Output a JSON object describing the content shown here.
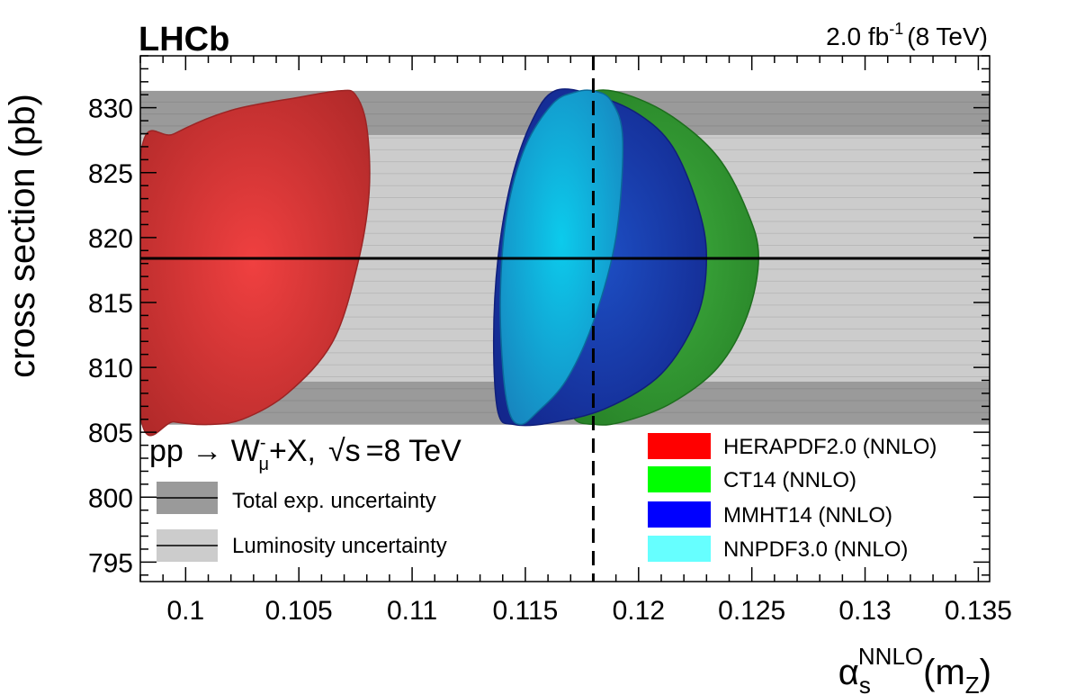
{
  "chart_data": {
    "type": "scatter",
    "experiment": "LHCb",
    "luminosity_label": "2.0 fb",
    "luminosity_sup": "-1",
    "energy_label": "(8 TeV)",
    "ylabel": "cross section (pb)",
    "xlabel": {
      "alpha": "α",
      "sub": "s",
      "sup": "NNLO",
      "m_open": "(m",
      "m_sub": "Z",
      "close": ")"
    },
    "xlim": [
      0.098,
      0.1355
    ],
    "ylim": [
      793.5,
      834
    ],
    "xticks": [
      0.1,
      0.105,
      0.11,
      0.115,
      0.12,
      0.125,
      0.13,
      0.135
    ],
    "xtick_labels": [
      "0.1",
      "0.105",
      "0.11",
      "0.115",
      "0.12",
      "0.125",
      "0.13",
      "0.135"
    ],
    "yticks": [
      795,
      800,
      805,
      810,
      815,
      820,
      825,
      830
    ],
    "ytick_labels": [
      "795",
      "800",
      "805",
      "810",
      "815",
      "820",
      "825",
      "830"
    ],
    "measurement": 818.4,
    "reference_alpha_s": 0.118,
    "bands": [
      {
        "name": "Total exp. uncertainty",
        "y_range": [
          805.6,
          831.3
        ],
        "color": "#9a9a9a"
      },
      {
        "name": "Luminosity uncertainty",
        "y_range": [
          808.9,
          827.9
        ],
        "color": "#cccccc"
      }
    ],
    "process": {
      "pre": "pp → W",
      "w_sup": "-",
      "w_sub": "μ",
      "post": "+X,",
      "sqrt": "√s",
      "energy": "=8 TeV"
    },
    "legend_bands": [
      {
        "label": "Total exp. uncertainty",
        "color": "#9a9a9a"
      },
      {
        "label": "Luminosity uncertainty",
        "color": "#cccccc"
      }
    ],
    "series": [
      {
        "name": "HERAPDF2.0 (NNLO)",
        "color": "#ff0000",
        "fill": "#e83838",
        "dark": "#9c2424",
        "outline": [
          [
            0.098,
            826.2
          ],
          [
            0.0995,
            828.0
          ],
          [
            0.102,
            829.8
          ],
          [
            0.105,
            830.8
          ],
          [
            0.1068,
            831.3
          ],
          [
            0.1075,
            831.0
          ],
          [
            0.108,
            828.5
          ],
          [
            0.1081,
            823.5
          ],
          [
            0.1076,
            818.0
          ],
          [
            0.1065,
            812.0
          ],
          [
            0.1045,
            808.0
          ],
          [
            0.1025,
            806.0
          ],
          [
            0.101,
            805.6
          ],
          [
            0.0995,
            805.8
          ],
          [
            0.098,
            806.4
          ]
        ]
      },
      {
        "name": "CT14 (NNLO)",
        "color": "#00ff00",
        "fill": "#33a033",
        "dark": "#1d6e1d",
        "outline": [
          [
            0.1181,
            831.3
          ],
          [
            0.1195,
            831.0
          ],
          [
            0.1215,
            829.3
          ],
          [
            0.1235,
            826.2
          ],
          [
            0.1248,
            822.0
          ],
          [
            0.1253,
            818.5
          ],
          [
            0.1248,
            814.0
          ],
          [
            0.1235,
            810.0
          ],
          [
            0.1215,
            807.3
          ],
          [
            0.1195,
            805.9
          ],
          [
            0.1181,
            805.6
          ],
          [
            0.117,
            806.5
          ],
          [
            0.1165,
            812.0
          ],
          [
            0.1163,
            818.5
          ],
          [
            0.1165,
            825.0
          ],
          [
            0.1172,
            830.0
          ]
        ]
      },
      {
        "name": "MMHT14 (NNLO)",
        "color": "#0000ff",
        "fill": "#1846b0",
        "dark": "#101f7a",
        "outline": [
          [
            0.1163,
            831.3
          ],
          [
            0.118,
            831.0
          ],
          [
            0.12,
            829.5
          ],
          [
            0.1215,
            827.0
          ],
          [
            0.1226,
            822.5
          ],
          [
            0.123,
            818.5
          ],
          [
            0.1226,
            814.0
          ],
          [
            0.121,
            809.5
          ],
          [
            0.1185,
            806.8
          ],
          [
            0.116,
            805.7
          ],
          [
            0.1145,
            805.6
          ],
          [
            0.1138,
            806.5
          ],
          [
            0.1136,
            812.0
          ],
          [
            0.1138,
            818.5
          ],
          [
            0.1144,
            824.5
          ],
          [
            0.1153,
            829.0
          ]
        ]
      },
      {
        "name": "NNPDF3.0 (NNLO)",
        "color": "#66ffff",
        "fill": "#12a8da",
        "dark": "#0b6a9a",
        "outline": [
          [
            0.118,
            831.3
          ],
          [
            0.1188,
            830.5
          ],
          [
            0.1193,
            827.5
          ],
          [
            0.119,
            820.0
          ],
          [
            0.118,
            813.5
          ],
          [
            0.1168,
            809.0
          ],
          [
            0.1155,
            806.5
          ],
          [
            0.1148,
            805.6
          ],
          [
            0.1143,
            806.5
          ],
          [
            0.114,
            810.0
          ],
          [
            0.1139,
            816.0
          ],
          [
            0.1142,
            822.0
          ],
          [
            0.115,
            827.0
          ],
          [
            0.1162,
            830.3
          ],
          [
            0.1172,
            831.2
          ]
        ]
      }
    ]
  }
}
